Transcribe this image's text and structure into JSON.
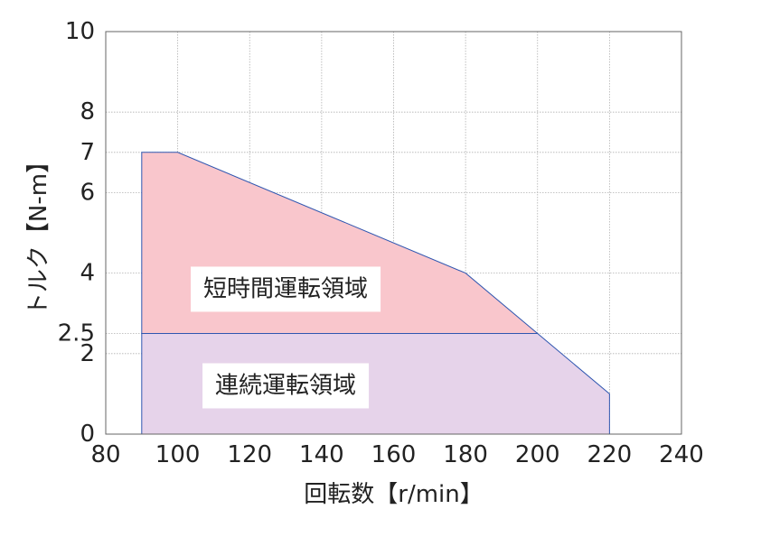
{
  "chart_data": {
    "type": "area",
    "title": "",
    "xlabel": "回転数【r/min】",
    "ylabel": "トルク【N-m】",
    "xlim": [
      80,
      240
    ],
    "ylim": [
      0,
      10
    ],
    "x_ticks": [
      80,
      100,
      120,
      140,
      160,
      180,
      200,
      220,
      240
    ],
    "y_ticks": [
      0,
      2,
      2.5,
      4,
      6,
      7,
      8,
      10
    ],
    "grid": true,
    "colors": {
      "short_fill": "#f9c6cc",
      "continuous_fill": "#e6d3ea",
      "border": "#2f56b0",
      "grid": "#b0b0b0",
      "frame": "#666666"
    },
    "series": [
      {
        "name": "短時間運転領域",
        "x": [
          90,
          90,
          100,
          180,
          200,
          90
        ],
        "y": [
          2.5,
          7,
          7,
          4,
          2.5,
          2.5
        ]
      },
      {
        "name": "連続運転領域",
        "x": [
          90,
          90,
          200,
          220,
          220,
          90
        ],
        "y": [
          0,
          2.5,
          2.5,
          1,
          0,
          0
        ]
      }
    ],
    "annotations": [
      {
        "text": "短時間運転領域",
        "x": 130,
        "y": 3.6
      },
      {
        "text": "連続運転領域",
        "x": 130,
        "y": 1.2
      }
    ]
  }
}
